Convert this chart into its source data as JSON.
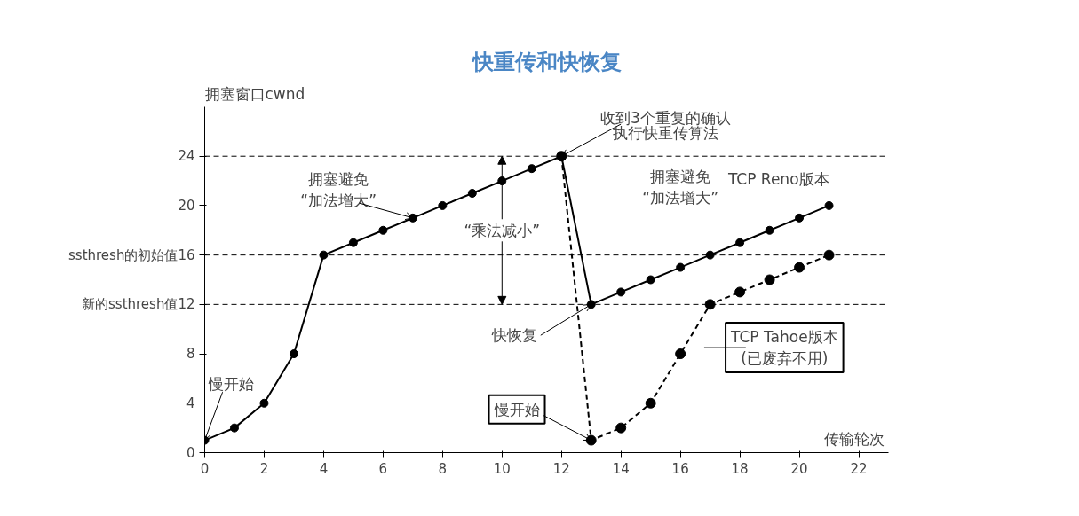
{
  "chart_data": {
    "type": "line",
    "title": "快重传和快恢复",
    "xlabel": "传输轮次",
    "ylabel": "拥塞窗口cwnd",
    "xlim": [
      0,
      23
    ],
    "ylim": [
      0,
      28
    ],
    "xticks": [
      0,
      2,
      4,
      6,
      8,
      10,
      12,
      14,
      16,
      18,
      20,
      22
    ],
    "yticks": [
      0,
      4,
      8,
      {
        "value": 12,
        "label": "新的ssthresh值12"
      },
      {
        "value": 16,
        "label": "ssthresh的初始值16"
      },
      20,
      24
    ],
    "grid": false,
    "marker": "circle",
    "series": [
      {
        "name": "TCP Reno版本",
        "color": "#000000",
        "line_style": "solid",
        "x": [
          0,
          1,
          2,
          3,
          4,
          5,
          6,
          7,
          8,
          9,
          10,
          11,
          12,
          13,
          14,
          15,
          16,
          17,
          18,
          19,
          20,
          21
        ],
        "values": [
          1,
          2,
          4,
          8,
          16,
          17,
          18,
          19,
          20,
          21,
          22,
          23,
          24,
          12,
          13,
          14,
          15,
          16,
          17,
          18,
          19,
          20
        ]
      },
      {
        "name": "TCP Tahoe版本\n(已废弃不用)",
        "color": "#000000",
        "line_style": "dashed",
        "x": [
          12,
          13,
          14,
          15,
          16,
          17,
          18,
          19,
          20,
          21
        ],
        "values": [
          24,
          1,
          2,
          4,
          8,
          12,
          13,
          14,
          15,
          16
        ]
      }
    ],
    "ref_lines": [
      {
        "axis": "y",
        "value": 24,
        "line_style": "dashed",
        "color": "#000000"
      },
      {
        "axis": "y",
        "value": 16,
        "line_style": "dashed",
        "color": "#000000"
      },
      {
        "axis": "y",
        "value": 12,
        "line_style": "dashed",
        "color": "#000000"
      }
    ],
    "annotations": [
      {
        "text": "慢开始",
        "x": 0,
        "y": 1
      },
      {
        "text": "拥塞避免\n“加法增大”",
        "x": 7,
        "y": 19
      },
      {
        "text": "“乘法减小”",
        "x": 10,
        "y": 12
      },
      {
        "text": "收到3个重复的确认",
        "x": 12,
        "y": 24
      },
      "执行快重传算法",
      {
        "text": "快恢复",
        "x": 13,
        "y": 12
      },
      {
        "text": "慢开始",
        "x": 13,
        "y": 1
      },
      "拥塞避免\n“加法增大”"
    ]
  }
}
